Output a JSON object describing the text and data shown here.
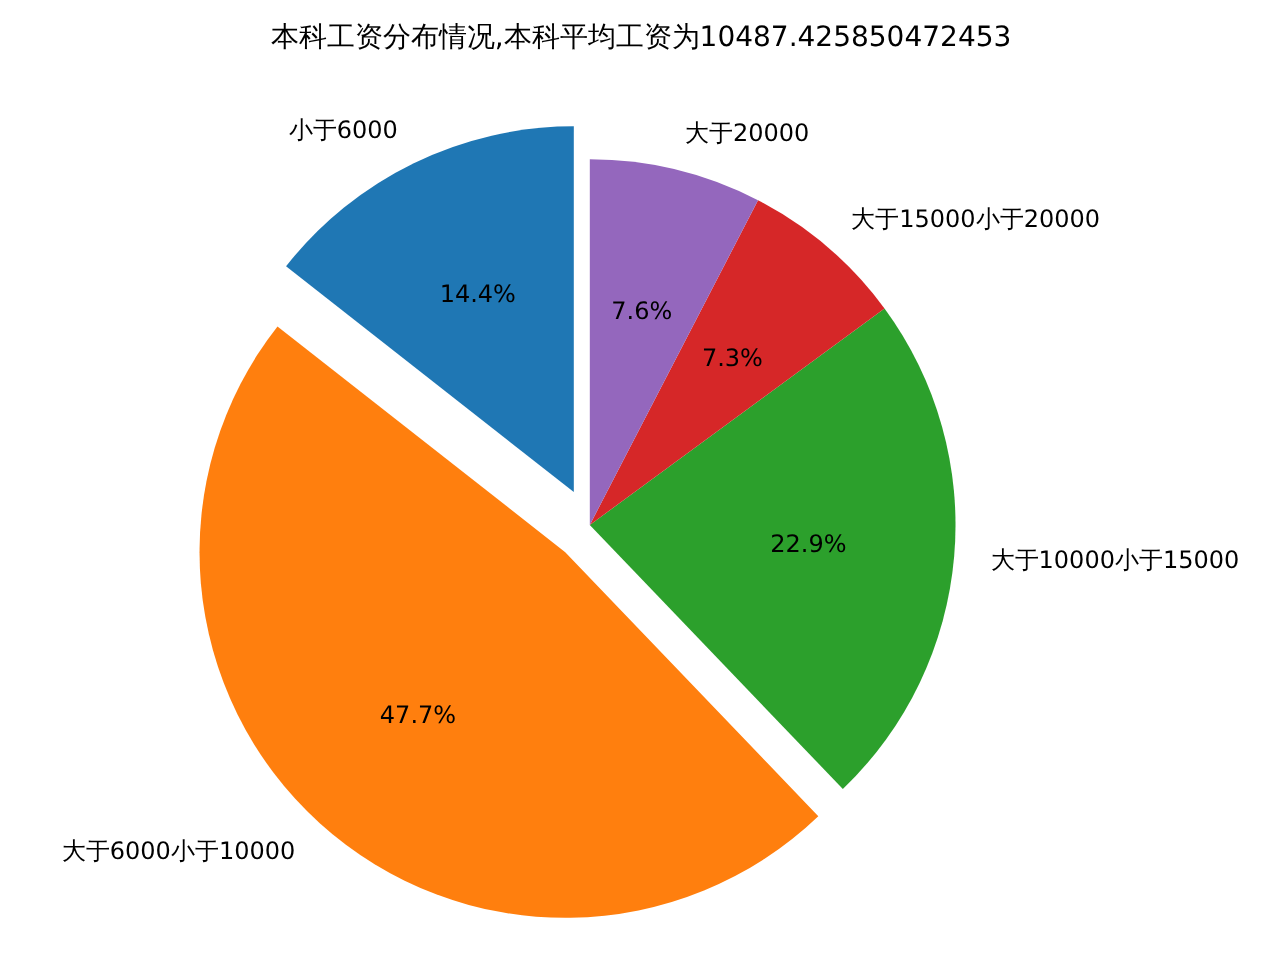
{
  "chart_data": {
    "type": "pie",
    "title": "本科工资分布情况,本科平均工资为10487.425850472453",
    "categories": [
      "小于6000",
      "大于6000小于10000",
      "大于10000小于15000",
      "大于15000小于20000",
      "大于20000"
    ],
    "values": [
      14.4,
      47.7,
      22.9,
      7.3,
      7.6
    ],
    "colors": [
      "#1f77b4",
      "#ff7f0e",
      "#2ca02c",
      "#d62728",
      "#9467bd"
    ],
    "value_labels": [
      "14.4%",
      "47.7%",
      "22.9%",
      "7.3%",
      "7.6%"
    ]
  }
}
